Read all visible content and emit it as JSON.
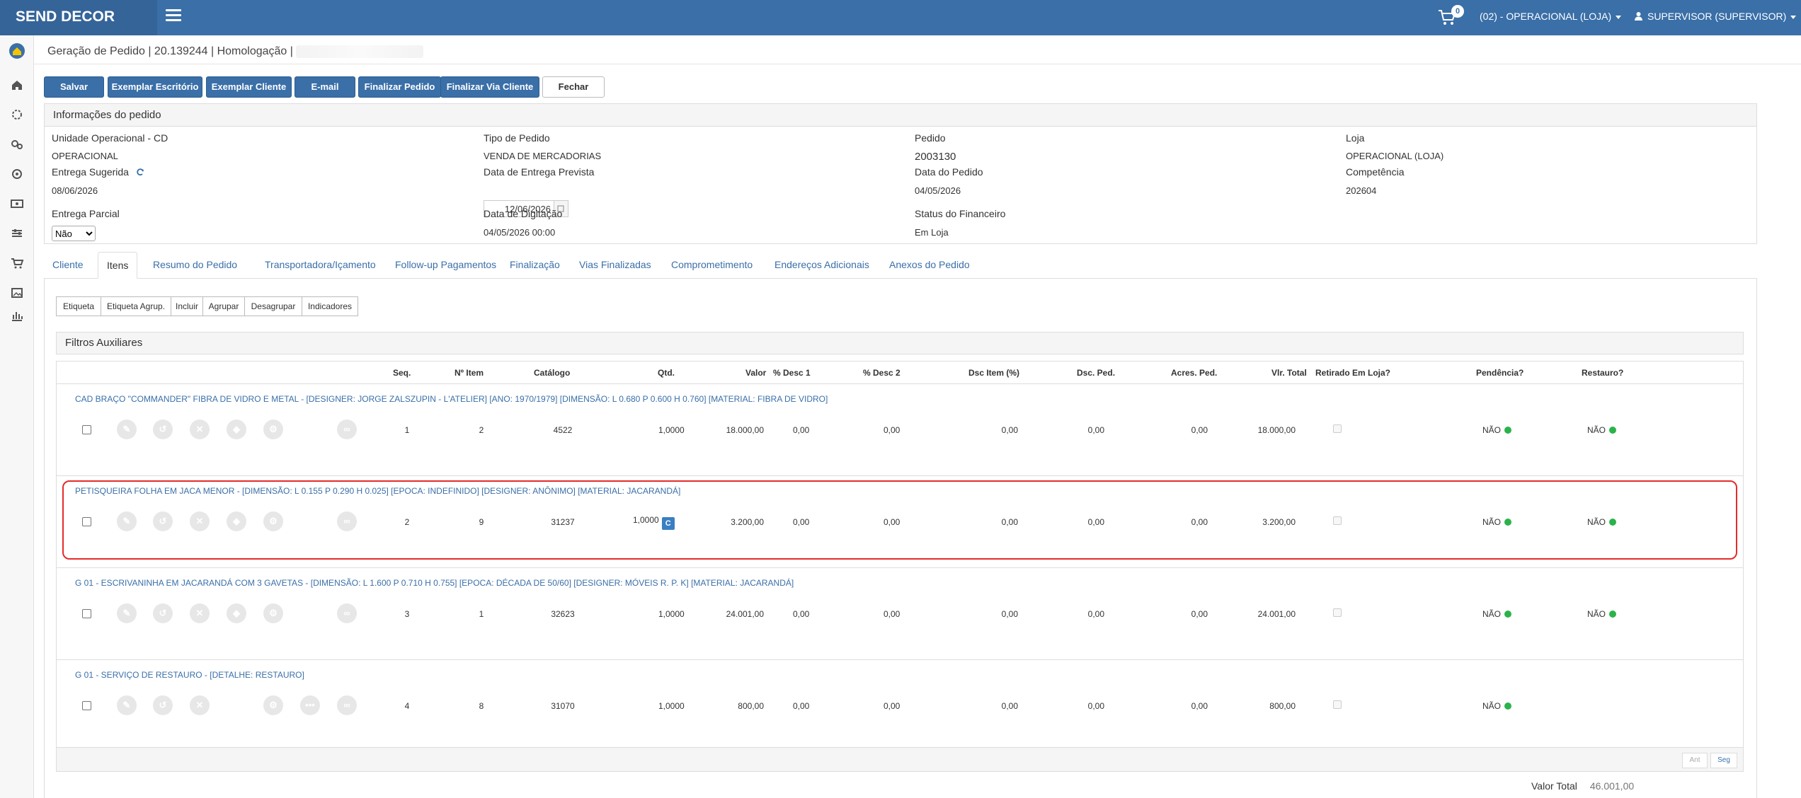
{
  "app": {
    "brand": "SEND DECOR",
    "cart_count": "0",
    "store": "(02) - OPERACIONAL (LOJA)",
    "user": "SUPERVISOR (SUPERVISOR)"
  },
  "page": {
    "title": "Geração de Pedido | 20.139244 | Homologação |"
  },
  "toolbar": {
    "save": "Salvar",
    "exemplar_escritorio": "Exemplar Escritório",
    "exemplar_cliente": "Exemplar Cliente",
    "email": "E-mail",
    "finalizar_pedido": "Finalizar Pedido",
    "finalizar_via_cliente": "Finalizar Via Cliente",
    "fechar": "Fechar"
  },
  "info": {
    "heading": "Informações do pedido",
    "unidade_label": "Unidade Operacional - CD",
    "unidade_value": "OPERACIONAL",
    "tipo_label": "Tipo de Pedido",
    "tipo_value": "VENDA DE MERCADORIAS",
    "pedido_label": "Pedido",
    "pedido_value": "2003130",
    "loja_label": "Loja",
    "loja_value": "OPERACIONAL (LOJA)",
    "entrega_sugerida_label": "Entrega Sugerida",
    "entrega_sugerida_value": "08/06/2026",
    "entrega_prevista_label": "Data de Entrega Prevista",
    "entrega_prevista_value": "12/06/2026",
    "data_pedido_label": "Data do Pedido",
    "data_pedido_value": "04/05/2026",
    "competencia_label": "Competência",
    "competencia_value": "202604",
    "entrega_parcial_label": "Entrega Parcial",
    "entrega_parcial_value": "Não",
    "digitacao_label": "Data de Digitação",
    "digitacao_value": "04/05/2026 00:00",
    "financeiro_label": "Status do Financeiro",
    "financeiro_value": "Em Loja"
  },
  "tabs": [
    "Cliente",
    "Itens",
    "Resumo do Pedido",
    "Transportadora/Içamento",
    "Follow-up Pagamentos",
    "Finalização",
    "Vias Finalizadas",
    "Comprometimento",
    "Endereços Adicionais",
    "Anexos do Pedido"
  ],
  "items_toolbar": [
    "Etiqueta",
    "Etiqueta Agrup.",
    "Incluir",
    "Agrupar",
    "Desagrupar",
    "Indicadores"
  ],
  "filters_label": "Filtros Auxiliares",
  "columns": [
    "Seq.",
    "Nº Item",
    "Catálogo",
    "Qtd.",
    "Valor",
    "% Desc 1",
    "% Desc 2",
    "Dsc Item (%)",
    "Dsc. Ped.",
    "Acres. Ped.",
    "Vlr. Total",
    "Retirado Em Loja?",
    "Pendência?",
    "Restauro?"
  ],
  "rows": [
    {
      "desc": "CAD BRAÇO \"COMMANDER\" FIBRA DE VIDRO E METAL - [DESIGNER: JORGE ZALSZUPIN - L'ATELIER] [ANO: 1970/1979] [DIMENSÃO: L 0.680 P 0.600 H 0.760] [MATERIAL: FIBRA DE VIDRO]",
      "seq": "1",
      "item": "2",
      "catalogo": "4522",
      "qtd": "1,0000",
      "valor": "18.000,00",
      "desc1": "0,00",
      "desc2": "0,00",
      "dsc_item": "0,00",
      "dsc_ped": "0,00",
      "acres": "0,00",
      "total": "18.000,00",
      "pendencia": "NÃO",
      "restauro": "NÃO"
    },
    {
      "desc": "PETISQUEIRA FOLHA EM JACA MENOR - [DIMENSÃO: L 0.155 P 0.290 H 0.025] [EPOCA: INDEFINIDO] [DESIGNER: ANÔNIMO] [MATERIAL: JACARANDÁ]",
      "seq": "2",
      "item": "9",
      "catalogo": "31237",
      "qtd": "1,0000",
      "badge": "C",
      "valor": "3.200,00",
      "desc1": "0,00",
      "desc2": "0,00",
      "dsc_item": "0,00",
      "dsc_ped": "0,00",
      "acres": "0,00",
      "total": "3.200,00",
      "pendencia": "NÃO",
      "restauro": "NÃO"
    },
    {
      "desc": "G 01 - ESCRIVANINHA EM JACARANDÁ COM 3 GAVETAS - [DIMENSÃO: L 1.600 P 0.710 H 0.755] [EPOCA: DÉCADA DE 50/60] [DESIGNER: MÓVEIS R. P. K] [MATERIAL: JACARANDÁ]",
      "seq": "3",
      "item": "1",
      "catalogo": "32623",
      "qtd": "1,0000",
      "valor": "24.001,00",
      "desc1": "0,00",
      "desc2": "0,00",
      "dsc_item": "0,00",
      "dsc_ped": "0,00",
      "acres": "0,00",
      "total": "24.001,00",
      "pendencia": "NÃO",
      "restauro": "NÃO"
    },
    {
      "desc": "G 01 - SERVIÇO DE RESTAURO - [DETALHE: RESTAURO]",
      "seq": "4",
      "item": "8",
      "catalogo": "31070",
      "qtd": "1,0000",
      "valor": "800,00",
      "desc1": "0,00",
      "desc2": "0,00",
      "dsc_item": "0,00",
      "dsc_ped": "0,00",
      "acres": "0,00",
      "total": "800,00",
      "pendencia": "NÃO"
    }
  ],
  "pagination": {
    "prev": "Ant",
    "next": "Seg"
  },
  "total": {
    "label": "Valor Total",
    "value": "46.001,00"
  },
  "icons": {
    "sidebar": [
      "logo-icon",
      "home-icon",
      "refresh-icon",
      "settings-icon",
      "target-icon",
      "money-icon",
      "sliders-icon",
      "cart-icon",
      "image-icon",
      "chart-icon"
    ]
  },
  "colors": {
    "primary": "#3a6fa8",
    "highlight": "#e52b2b",
    "status_ok": "#2ab34a"
  }
}
